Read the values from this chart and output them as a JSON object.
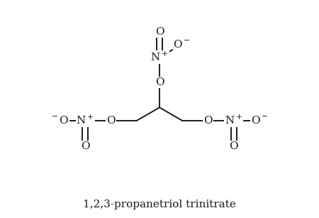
{
  "title": "1,2,3-propanetriol trinitrate",
  "title_fontsize": 11,
  "bg_color": "#ffffff",
  "bond_color": "#1a1a1a",
  "atom_color": "#1a1a1a",
  "fig_width": 4.5,
  "fig_height": 3.07,
  "lw": 1.4,
  "fontsize": 11,
  "xlim": [
    0,
    9
  ],
  "ylim": [
    0,
    7
  ]
}
